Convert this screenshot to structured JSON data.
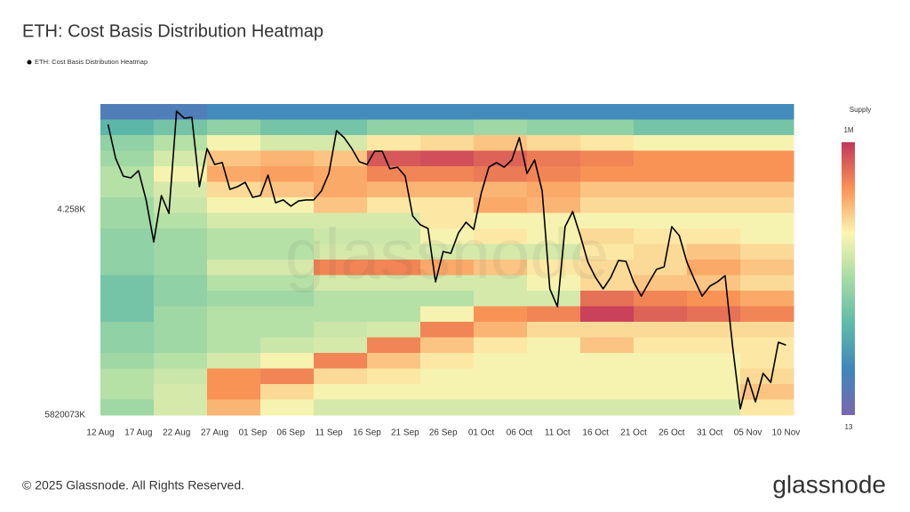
{
  "chart_data": {
    "type": "heatmap_line",
    "title": "ETH: Cost Basis Distribution Heatmap",
    "watermark": "glassnode",
    "footer": "© 2025 Glassnode. All Rights Reserved.",
    "logo": "glassnode",
    "xlim": [
      "12 Aug",
      "11 Nov"
    ],
    "xticks": [
      "12 Aug",
      "17 Aug",
      "22 Aug",
      "27 Aug",
      "01 Sep",
      "06 Sep",
      "11 Sep",
      "16 Sep",
      "21 Sep",
      "26 Sep",
      "01 Oct",
      "06 Oct",
      "11 Oct",
      "16 Oct",
      "21 Oct",
      "26 Oct",
      "31 Oct",
      "05 Nov",
      "10 Nov"
    ],
    "ylim": [
      3004,
      4904
    ],
    "yticks": [
      {
        "value": 4258,
        "label": "4.258K"
      }
    ],
    "y_bottom_label": "5820073K",
    "xbins": [
      "12 Aug",
      "19 Aug",
      "26 Aug",
      "02 Sep",
      "09 Sep",
      "16 Sep",
      "23 Sep",
      "30 Sep",
      "07 Oct",
      "14 Oct",
      "21 Oct",
      "28 Oct",
      "04 Nov",
      "11 Nov"
    ],
    "ybins": [
      4904,
      4809,
      4714,
      4619,
      4524,
      4429,
      4334,
      4239,
      4144,
      4049,
      3954,
      3859,
      3764,
      3669,
      3574,
      3479,
      3384,
      3289,
      3194,
      3099,
      3004
    ],
    "z": [
      [
        50,
        50,
        100,
        100,
        100,
        100,
        100,
        100,
        100,
        100,
        100,
        100,
        100
      ],
      [
        500,
        1000,
        2000,
        1000,
        1000,
        2000,
        2000,
        3000,
        2000,
        2000,
        1000,
        1000,
        1000
      ],
      [
        2000,
        5000,
        20000,
        10000,
        10000,
        30000,
        40000,
        60000,
        40000,
        30000,
        20000,
        20000,
        20000
      ],
      [
        3000,
        10000,
        60000,
        80000,
        60000,
        500000,
        600000,
        400000,
        250000,
        200000,
        150000,
        150000,
        150000
      ],
      [
        5000,
        20000,
        100000,
        120000,
        100000,
        200000,
        200000,
        250000,
        200000,
        150000,
        150000,
        150000,
        150000
      ],
      [
        5000,
        10000,
        40000,
        60000,
        100000,
        80000,
        80000,
        80000,
        100000,
        60000,
        60000,
        60000,
        60000
      ],
      [
        3000,
        8000,
        20000,
        20000,
        60000,
        30000,
        30000,
        100000,
        80000,
        40000,
        40000,
        40000,
        40000
      ],
      [
        3000,
        5000,
        10000,
        10000,
        10000,
        10000,
        30000,
        20000,
        20000,
        20000,
        20000,
        20000,
        20000
      ],
      [
        2000,
        3000,
        5000,
        5000,
        8000,
        8000,
        20000,
        30000,
        20000,
        40000,
        30000,
        30000,
        20000
      ],
      [
        2000,
        3000,
        5000,
        5000,
        10000,
        10000,
        10000,
        10000,
        10000,
        30000,
        40000,
        60000,
        40000
      ],
      [
        2000,
        3000,
        10000,
        10000,
        200000,
        200000,
        100000,
        60000,
        30000,
        40000,
        40000,
        100000,
        60000
      ],
      [
        1000,
        2000,
        5000,
        5000,
        10000,
        10000,
        10000,
        10000,
        20000,
        40000,
        60000,
        60000,
        40000
      ],
      [
        1000,
        2000,
        3000,
        3000,
        5000,
        5000,
        5000,
        10000,
        10000,
        300000,
        200000,
        150000,
        100000
      ],
      [
        1000,
        3000,
        5000,
        5000,
        5000,
        5000,
        20000,
        150000,
        200000,
        800000,
        400000,
        300000,
        200000
      ],
      [
        2000,
        3000,
        5000,
        5000,
        8000,
        10000,
        200000,
        80000,
        40000,
        40000,
        40000,
        40000,
        40000
      ],
      [
        2000,
        3000,
        5000,
        8000,
        10000,
        200000,
        60000,
        30000,
        20000,
        60000,
        30000,
        30000,
        30000
      ],
      [
        3000,
        5000,
        10000,
        20000,
        200000,
        60000,
        30000,
        20000,
        20000,
        20000,
        20000,
        20000,
        30000
      ],
      [
        5000,
        8000,
        150000,
        200000,
        40000,
        30000,
        20000,
        20000,
        20000,
        20000,
        20000,
        20000,
        40000
      ],
      [
        5000,
        10000,
        150000,
        40000,
        20000,
        20000,
        20000,
        20000,
        20000,
        20000,
        20000,
        20000,
        60000
      ],
      [
        3000,
        10000,
        80000,
        20000,
        10000,
        10000,
        10000,
        10000,
        10000,
        10000,
        10000,
        10000,
        30000
      ]
    ],
    "colorbar": {
      "title": "Supply",
      "lim": [
        13,
        1000000
      ],
      "log": true,
      "ticks": [
        {
          "value": 1000000,
          "label": "1M"
        },
        13
      ],
      "colors": [
        "#7a68ad",
        "#3f86bc",
        "#5fbaa8",
        "#a6dba4",
        "#fcf5b0",
        "#f99254",
        "#c2365c"
      ]
    },
    "series": [
      {
        "name": "ETH: Cost Basis Distribution Heatmap",
        "color": "#000000",
        "x": [
          "13 Aug",
          "14 Aug",
          "15 Aug",
          "16 Aug",
          "17 Aug",
          "18 Aug",
          "19 Aug",
          "20 Aug",
          "21 Aug",
          "22 Aug",
          "23 Aug",
          "24 Aug",
          "25 Aug",
          "26 Aug",
          "27 Aug",
          "28 Aug",
          "29 Aug",
          "30 Aug",
          "31 Aug",
          "01 Sep",
          "02 Sep",
          "03 Sep",
          "04 Sep",
          "05 Sep",
          "06 Sep",
          "07 Sep",
          "08 Sep",
          "09 Sep",
          "10 Sep",
          "11 Sep",
          "12 Sep",
          "13 Sep",
          "14 Sep",
          "15 Sep",
          "16 Sep",
          "17 Sep",
          "18 Sep",
          "19 Sep",
          "20 Sep",
          "21 Sep",
          "22 Sep",
          "23 Sep",
          "24 Sep",
          "25 Sep",
          "26 Sep",
          "27 Sep",
          "28 Sep",
          "29 Sep",
          "30 Sep",
          "01 Oct",
          "02 Oct",
          "03 Oct",
          "04 Oct",
          "05 Oct",
          "06 Oct",
          "07 Oct",
          "08 Oct",
          "09 Oct",
          "10 Oct",
          "11 Oct",
          "12 Oct",
          "13 Oct",
          "14 Oct",
          "15 Oct",
          "16 Oct",
          "17 Oct",
          "18 Oct",
          "19 Oct",
          "20 Oct",
          "21 Oct",
          "22 Oct",
          "23 Oct",
          "24 Oct",
          "25 Oct",
          "26 Oct",
          "27 Oct",
          "28 Oct",
          "29 Oct",
          "30 Oct",
          "31 Oct",
          "01 Nov",
          "02 Nov",
          "03 Nov",
          "04 Nov",
          "05 Nov",
          "06 Nov",
          "07 Nov",
          "08 Nov",
          "09 Nov",
          "10 Nov"
        ],
        "values": [
          4779,
          4573,
          4464,
          4453,
          4497,
          4318,
          4062,
          4345,
          4236,
          4861,
          4817,
          4823,
          4399,
          4632,
          4535,
          4546,
          4383,
          4399,
          4426,
          4334,
          4345,
          4470,
          4301,
          4318,
          4280,
          4312,
          4318,
          4318,
          4372,
          4480,
          4741,
          4698,
          4632,
          4551,
          4535,
          4616,
          4616,
          4508,
          4518,
          4464,
          4220,
          4166,
          4144,
          3818,
          4003,
          3992,
          4117,
          4182,
          4138,
          4361,
          4518,
          4546,
          4518,
          4562,
          4698,
          4480,
          4562,
          4372,
          3775,
          3666,
          4155,
          4247,
          4100,
          3937,
          3845,
          3775,
          3845,
          3948,
          3943,
          3818,
          3731,
          3813,
          3894,
          3910,
          4155,
          4100,
          3937,
          3829,
          3731,
          3791,
          3818,
          3856,
          3422,
          3042,
          3232,
          3085,
          3259,
          3204,
          3449,
          3432
        ]
      }
    ]
  }
}
